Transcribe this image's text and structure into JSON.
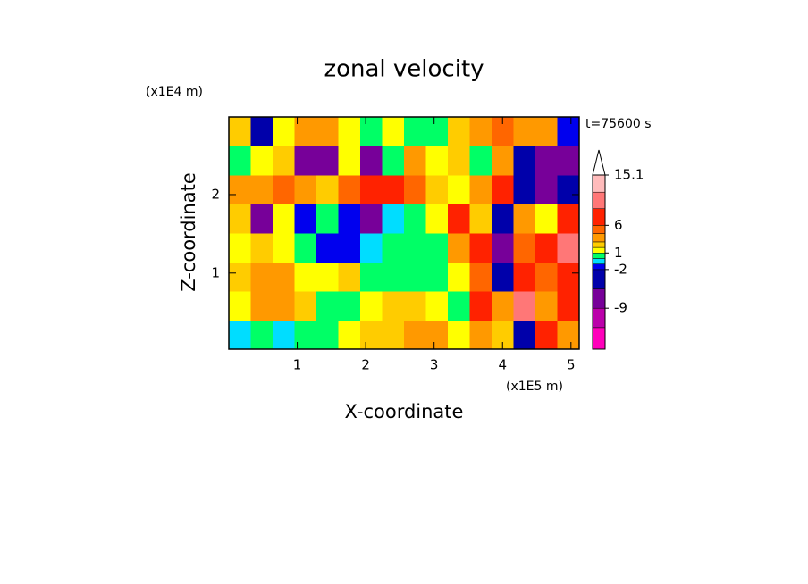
{
  "chart_data": {
    "type": "contour",
    "title": "zonal velocity",
    "x_label": "X-coordinate",
    "y_label": "Z-coordinate",
    "x_multiplier": "(x1E5 m)",
    "y_multiplier": "(x1E4 m)",
    "time_label": "t=75600 s",
    "xlim": [
      0,
      5.12
    ],
    "ylim": [
      0.03,
      2.99
    ],
    "xticks": [
      1,
      2,
      3,
      4,
      5
    ],
    "yticks": [
      1,
      2
    ],
    "x": [
      0.16,
      0.48,
      0.8,
      1.12,
      1.44,
      1.76,
      2.08,
      2.4,
      2.72,
      3.04,
      3.36,
      3.68,
      4.0,
      4.32,
      4.64,
      4.96
    ],
    "y": [
      0.215,
      0.585,
      0.955,
      1.325,
      1.695,
      2.065,
      2.435,
      2.805
    ],
    "z": [
      [
        -1,
        0,
        -1,
        0,
        0,
        1,
        2,
        2,
        3,
        4,
        1,
        3,
        2,
        -4,
        6,
        3
      ],
      [
        1,
        3,
        4,
        2,
        0,
        0,
        1,
        2,
        2,
        1,
        0,
        7,
        3,
        9,
        4,
        6
      ],
      [
        2,
        4,
        3,
        1,
        1,
        2,
        0,
        0,
        0,
        0,
        1,
        5,
        -4,
        6,
        5,
        8
      ],
      [
        1,
        2,
        1,
        0,
        -2,
        -2,
        -1,
        0,
        0,
        0,
        3,
        6,
        -7,
        5,
        7,
        9
      ],
      [
        2,
        -8,
        1,
        -2,
        0,
        -2,
        -8,
        -1,
        0,
        1,
        6,
        2,
        -5,
        4,
        1,
        6
      ],
      [
        3,
        4,
        5,
        4,
        2,
        5,
        6,
        7,
        5,
        2,
        1,
        3,
        7,
        -4,
        -9,
        -3
      ],
      [
        0,
        1,
        2,
        -9,
        -7,
        1,
        -8,
        0,
        3,
        1,
        2,
        0,
        3,
        -5,
        -6,
        -9
      ],
      [
        2,
        -3,
        1,
        3,
        4,
        1,
        0,
        1,
        0,
        0,
        2,
        4,
        5,
        3,
        4,
        -2
      ]
    ],
    "levels": [
      -16.4,
      -12.5,
      -9,
      -5.5,
      -2,
      -1,
      0,
      1,
      2,
      3,
      4.5,
      6,
      9,
      12,
      15.1
    ],
    "colors": [
      "#ff00bb",
      "#bb00aa",
      "#770099",
      "#0000aa",
      "#0000ee",
      "#00ddff",
      "#00ff66",
      "#ffff00",
      "#ffcc00",
      "#ff9900",
      "#ff6600",
      "#ff2200",
      "#ff7777",
      "#ffbbbb"
    ],
    "colorbar_ticks": [
      -9,
      -2,
      1,
      6,
      15.1
    ]
  }
}
